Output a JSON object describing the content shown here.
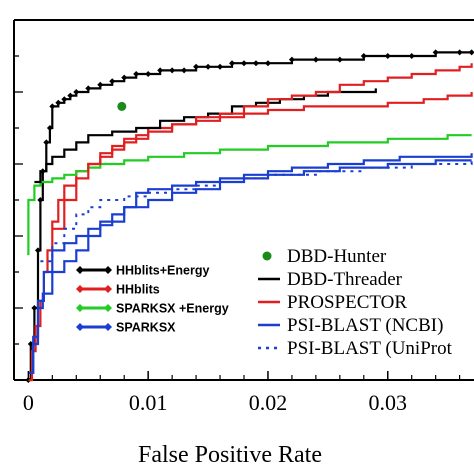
{
  "chart_data": {
    "type": "line",
    "xlabel": "False Positive Rate",
    "ylabel": "",
    "title": "",
    "xlim": [
      -0.0012,
      0.0372
    ],
    "ylim": [
      0,
      1
    ],
    "xticks": [
      0,
      0.01,
      0.02,
      0.03
    ],
    "xtick_labels": [
      "0",
      "0.01",
      "0.02",
      "0.03"
    ],
    "yticks": [
      0,
      0.2,
      0.4,
      0.6,
      0.8,
      1.0
    ],
    "grid": false,
    "legend_placement": "bottom (two columns)",
    "series": [
      {
        "name": "HHblits+Energy",
        "color": "#000000",
        "style": "solid-with-diamond-markers",
        "x": [
          0,
          0.0002,
          0.0005,
          0.0008,
          0.001,
          0.0012,
          0.0015,
          0.0018,
          0.002,
          0.0025,
          0.003,
          0.0035,
          0.004,
          0.005,
          0.006,
          0.007,
          0.008,
          0.009,
          0.01,
          0.011,
          0.012,
          0.013,
          0.014,
          0.015,
          0.016,
          0.017,
          0.018,
          0.019,
          0.02,
          0.022,
          0.024,
          0.026,
          0.028,
          0.03,
          0.032,
          0.034,
          0.036,
          0.037
        ],
        "y": [
          0,
          0.1,
          0.2,
          0.36,
          0.5,
          0.58,
          0.66,
          0.7,
          0.76,
          0.77,
          0.78,
          0.79,
          0.8,
          0.81,
          0.82,
          0.83,
          0.84,
          0.85,
          0.85,
          0.86,
          0.86,
          0.86,
          0.87,
          0.87,
          0.87,
          0.88,
          0.88,
          0.88,
          0.88,
          0.89,
          0.89,
          0.89,
          0.9,
          0.9,
          0.9,
          0.91,
          0.91,
          0.91
        ]
      },
      {
        "name": "HHblits",
        "color": "#e02020",
        "style": "solid",
        "x": [
          0,
          0.0003,
          0.0006,
          0.001,
          0.0013,
          0.0016,
          0.002,
          0.0025,
          0.003,
          0.004,
          0.005,
          0.006,
          0.007,
          0.008,
          0.009,
          0.01,
          0.012,
          0.014,
          0.016,
          0.018,
          0.02,
          0.023,
          0.026,
          0.03,
          0.033,
          0.035,
          0.037
        ],
        "y": [
          0,
          0.08,
          0.15,
          0.22,
          0.3,
          0.36,
          0.44,
          0.5,
          0.54,
          0.58,
          0.6,
          0.62,
          0.64,
          0.66,
          0.68,
          0.7,
          0.71,
          0.72,
          0.73,
          0.74,
          0.75,
          0.76,
          0.76,
          0.77,
          0.78,
          0.79,
          0.8
        ]
      },
      {
        "name": "SPARKSX +Energy",
        "color": "#22cc22",
        "style": "solid",
        "x": [
          -0.0001,
          0,
          0.0005,
          0.001,
          0.002,
          0.003,
          0.004,
          0.005,
          0.006,
          0.008,
          0.01,
          0.013,
          0.016,
          0.02,
          0.025,
          0.03,
          0.035,
          0.037
        ],
        "y": [
          0.35,
          0.5,
          0.54,
          0.55,
          0.56,
          0.57,
          0.58,
          0.59,
          0.6,
          0.61,
          0.62,
          0.63,
          0.64,
          0.65,
          0.66,
          0.67,
          0.68,
          0.68
        ]
      },
      {
        "name": "SPARKSX",
        "color": "#1a3fd0",
        "style": "solid",
        "x": [
          0,
          0.0004,
          0.0008,
          0.0013,
          0.002,
          0.003,
          0.004,
          0.005,
          0.006,
          0.007,
          0.008,
          0.009,
          0.01,
          0.012,
          0.014,
          0.016,
          0.018,
          0.02,
          0.022,
          0.025,
          0.028,
          0.031,
          0.034,
          0.037
        ],
        "y": [
          0.02,
          0.12,
          0.22,
          0.3,
          0.36,
          0.38,
          0.4,
          0.42,
          0.43,
          0.46,
          0.48,
          0.52,
          0.53,
          0.54,
          0.55,
          0.56,
          0.57,
          0.58,
          0.59,
          0.6,
          0.61,
          0.62,
          0.62,
          0.63
        ]
      },
      {
        "name": "DBD-Hunter",
        "color": "#1a8a1a",
        "style": "point",
        "x": [
          0.0078
        ],
        "y": [
          0.76
        ]
      },
      {
        "name": "DBD-Threader",
        "color": "#000000",
        "style": "solid",
        "x": [
          0.0005,
          0.001,
          0.0015,
          0.002,
          0.003,
          0.004,
          0.005,
          0.007,
          0.009,
          0.011,
          0.013,
          0.015,
          0.017,
          0.019,
          0.021,
          0.023,
          0.025,
          0.027,
          0.029
        ],
        "y": [
          0.55,
          0.58,
          0.6,
          0.62,
          0.64,
          0.66,
          0.68,
          0.69,
          0.7,
          0.72,
          0.73,
          0.74,
          0.76,
          0.77,
          0.78,
          0.79,
          0.8,
          0.8,
          0.81
        ]
      },
      {
        "name": "PROSPECTOR",
        "color": "#e02020",
        "style": "solid",
        "x": [
          0.002,
          0.003,
          0.004,
          0.005,
          0.006,
          0.007,
          0.008,
          0.01,
          0.012,
          0.014,
          0.016,
          0.018,
          0.02,
          0.022,
          0.024,
          0.026,
          0.028,
          0.03,
          0.032,
          0.034,
          0.036,
          0.037
        ],
        "y": [
          0.42,
          0.5,
          0.56,
          0.6,
          0.63,
          0.65,
          0.67,
          0.69,
          0.71,
          0.73,
          0.74,
          0.76,
          0.78,
          0.79,
          0.8,
          0.82,
          0.83,
          0.84,
          0.85,
          0.86,
          0.87,
          0.88
        ]
      },
      {
        "name": "PSI-BLAST (NCBI)",
        "color": "#1a3fd0",
        "style": "solid",
        "x": [
          0,
          0.0004,
          0.0008,
          0.0012,
          0.002,
          0.003,
          0.004,
          0.005,
          0.006,
          0.008,
          0.01,
          0.012,
          0.014,
          0.016,
          0.018,
          0.02,
          0.023,
          0.026,
          0.03,
          0.034,
          0.037
        ],
        "y": [
          0.02,
          0.1,
          0.2,
          0.24,
          0.3,
          0.33,
          0.36,
          0.4,
          0.44,
          0.48,
          0.5,
          0.52,
          0.53,
          0.55,
          0.56,
          0.57,
          0.58,
          0.59,
          0.6,
          0.61,
          0.61
        ]
      },
      {
        "name": "PSI-BLAST (UniProt",
        "color": "#1a3fd0",
        "style": "dotted",
        "x": [
          0.001,
          0.002,
          0.003,
          0.004,
          0.005,
          0.006,
          0.008,
          0.01,
          0.012,
          0.014,
          0.016,
          0.018,
          0.02,
          0.024,
          0.028,
          0.032,
          0.037
        ],
        "y": [
          0.33,
          0.38,
          0.42,
          0.46,
          0.48,
          0.5,
          0.51,
          0.52,
          0.53,
          0.54,
          0.55,
          0.56,
          0.57,
          0.58,
          0.59,
          0.6,
          0.61
        ]
      }
    ],
    "legend_left": [
      {
        "label": "HHblits+Energy",
        "color": "#000000",
        "marker": "diamond"
      },
      {
        "label": "HHblits",
        "color": "#e02020",
        "marker": "diamond"
      },
      {
        "label": "SPARKSX +Energy",
        "color": "#22cc22",
        "marker": "diamond"
      },
      {
        "label": "SPARKSX",
        "color": "#1a3fd0",
        "marker": "diamond"
      }
    ],
    "legend_right": [
      {
        "label": "DBD-Hunter",
        "color": "#1a8a1a",
        "kind": "dot"
      },
      {
        "label": "DBD-Threader",
        "color": "#000000",
        "kind": "line"
      },
      {
        "label": "PROSPECTOR",
        "color": "#e02020",
        "kind": "line"
      },
      {
        "label": "PSI-BLAST (NCBI)",
        "color": "#1a3fd0",
        "kind": "line"
      },
      {
        "label": "PSI-BLAST (UniProt",
        "color": "#1a3fd0",
        "kind": "dotted"
      }
    ]
  }
}
